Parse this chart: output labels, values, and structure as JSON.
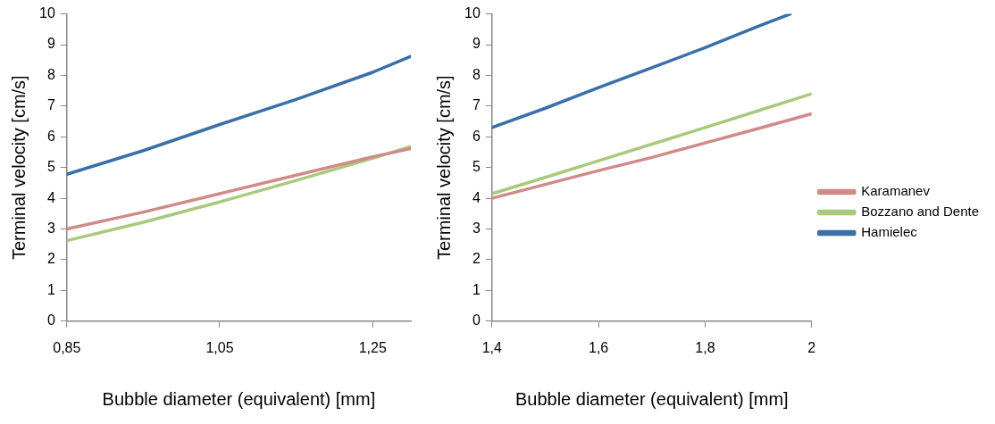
{
  "chart_data": [
    {
      "type": "line",
      "xlabel": "Bubble diameter (equivalent) [mm]",
      "ylabel": "Terminal velocity [cm/s]",
      "xlim": [
        0.85,
        1.3
      ],
      "xticks": [
        {
          "value": 0.85,
          "label": "0,85"
        },
        {
          "value": 1.05,
          "label": "1,05"
        },
        {
          "value": 1.25,
          "label": "1,25"
        }
      ],
      "ylim": [
        0,
        10
      ],
      "yticks": [
        0,
        1,
        2,
        3,
        4,
        5,
        6,
        7,
        8,
        9,
        10
      ],
      "grid": false,
      "legend": false,
      "marker": "none",
      "line_style": "solid",
      "series": [
        {
          "color": "#d08b88",
          "x": [
            0.85,
            0.95,
            1.05,
            1.15,
            1.25,
            1.3
          ],
          "values": [
            3.0,
            3.55,
            4.15,
            4.75,
            5.35,
            5.62
          ]
        },
        {
          "color": "#a9c97e",
          "x": [
            0.85,
            0.95,
            1.05,
            1.15,
            1.25,
            1.3
          ],
          "values": [
            2.62,
            3.22,
            3.88,
            4.58,
            5.3,
            5.68
          ]
        },
        {
          "color": "#3a6fa8",
          "x": [
            0.85,
            0.95,
            1.05,
            1.15,
            1.25,
            1.3
          ],
          "values": [
            4.78,
            5.55,
            6.4,
            7.22,
            8.1,
            8.62
          ]
        }
      ]
    },
    {
      "type": "line",
      "xlabel": "Bubble diameter (equivalent) [mm]",
      "ylabel": "Terminal velocity [cm/s]",
      "xlim": [
        1.4,
        2
      ],
      "xticks": [
        {
          "value": 1.4,
          "label": "1,4"
        },
        {
          "value": 1.6,
          "label": "1,6"
        },
        {
          "value": 1.8,
          "label": "1,8"
        },
        2
      ],
      "ylim": [
        0,
        10
      ],
      "yticks": [
        0,
        1,
        2,
        3,
        4,
        5,
        6,
        7,
        8,
        9,
        10
      ],
      "grid": false,
      "legend": "right",
      "marker": "none",
      "line_style": "solid",
      "series": [
        {
          "name": "Karamanev",
          "color": "#d08b88",
          "x": [
            1.4,
            1.5,
            1.6,
            1.7,
            1.8,
            1.9,
            2
          ],
          "values": [
            4.0,
            4.45,
            4.9,
            5.33,
            5.8,
            6.27,
            6.75
          ]
        },
        {
          "name": "Bozzano and Dente",
          "color": "#a9c97e",
          "x": [
            1.4,
            1.5,
            1.6,
            1.7,
            1.8,
            1.9,
            2
          ],
          "values": [
            4.15,
            4.68,
            5.22,
            5.76,
            6.3,
            6.85,
            7.4
          ]
        },
        {
          "name": "Hamielec",
          "color": "#3a6fa8",
          "x": [
            1.4,
            1.5,
            1.6,
            1.7,
            1.8,
            1.9,
            1.96
          ],
          "values": [
            6.3,
            6.93,
            7.6,
            8.25,
            8.9,
            9.6,
            10.0
          ]
        }
      ]
    }
  ]
}
